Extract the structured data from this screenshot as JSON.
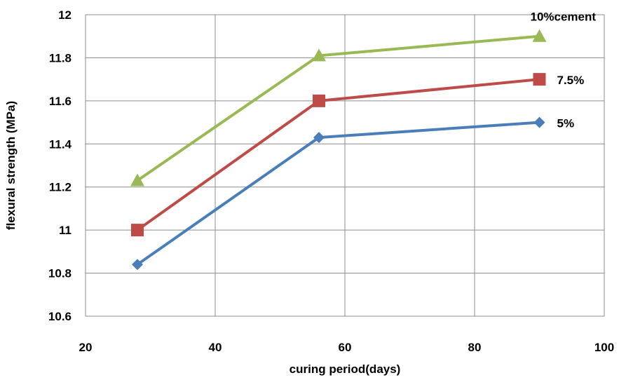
{
  "chart_data": {
    "type": "line",
    "title": "",
    "xlabel": "curing period(days)",
    "ylabel": "flexural strength (MPa)",
    "xlim": [
      20,
      100
    ],
    "ylim": [
      10.6,
      12
    ],
    "x_ticks": [
      20,
      40,
      60,
      80,
      100
    ],
    "y_ticks": [
      10.6,
      10.8,
      11,
      11.2,
      11.4,
      11.6,
      11.8,
      12
    ],
    "y_tick_labels": [
      "10.6",
      "10.8",
      "11",
      "11.2",
      "11.4",
      "11.6",
      "11.8",
      "12"
    ],
    "grid": true,
    "legend": "none",
    "x": [
      28,
      56,
      90
    ],
    "series": [
      {
        "name": "5%",
        "values": [
          10.84,
          11.43,
          11.5
        ],
        "color": "#4a7ebb",
        "marker": "diamond"
      },
      {
        "name": "7.5%",
        "values": [
          11.0,
          11.6,
          11.7
        ],
        "color": "#be4b48",
        "marker": "square"
      },
      {
        "name": "10%cement",
        "values": [
          11.23,
          11.81,
          11.9
        ],
        "color": "#98b954",
        "marker": "triangle"
      }
    ]
  }
}
